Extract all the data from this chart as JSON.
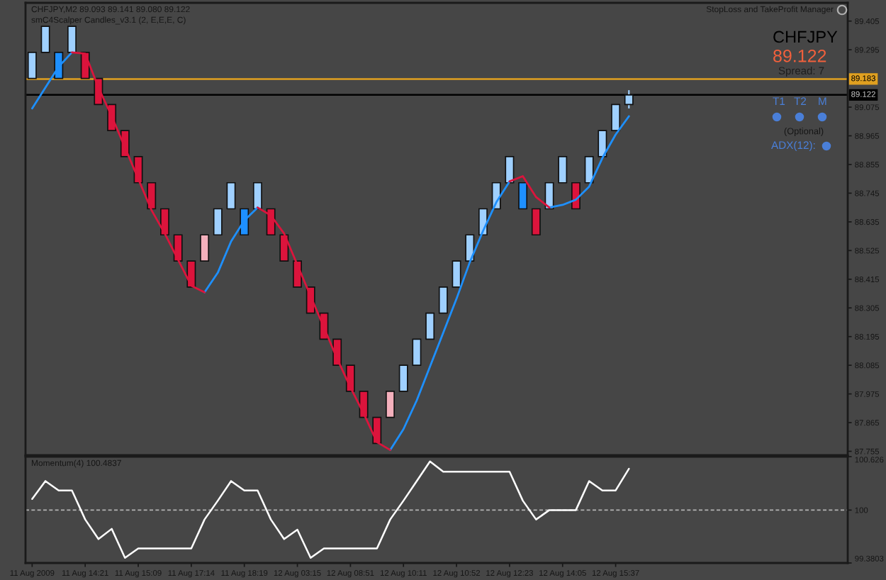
{
  "chart_data": [
    {
      "type": "candlestick",
      "title": "CHFJPY,M2 89.093 89.141 89.080 89.122",
      "subtitle": "smC4Scalper Candles_v3.1 (2, E,E,E, C)",
      "categories": [
        null,
        null,
        null,
        null,
        null,
        null,
        null,
        null,
        null,
        null,
        null,
        null,
        null,
        null,
        null,
        null,
        null,
        null,
        null,
        null,
        null,
        null,
        null,
        null,
        null,
        null,
        null,
        null,
        null,
        null,
        null,
        null,
        null,
        null,
        null,
        null,
        null,
        null,
        null,
        null,
        null,
        null,
        null,
        null,
        null,
        null,
        null,
        null,
        null,
        null,
        null,
        null,
        null,
        null,
        null,
        null,
        null,
        null,
        null,
        null,
        null,
        null
      ],
      "ohlc": [
        [
          89.185,
          89.285,
          89.185,
          89.285
        ],
        [
          89.285,
          89.385,
          89.285,
          89.385
        ],
        [
          89.285,
          89.285,
          89.185,
          89.185
        ],
        [
          89.285,
          89.385,
          89.285,
          89.385
        ],
        [
          89.285,
          89.285,
          89.185,
          89.185
        ],
        [
          89.185,
          89.185,
          89.085,
          89.085
        ],
        [
          89.085,
          89.085,
          88.985,
          88.985
        ],
        [
          88.985,
          88.985,
          88.885,
          88.885
        ],
        [
          88.885,
          88.885,
          88.785,
          88.785
        ],
        [
          88.785,
          88.785,
          88.685,
          88.685
        ],
        [
          88.685,
          88.685,
          88.585,
          88.585
        ],
        [
          88.585,
          88.585,
          88.485,
          88.485
        ],
        [
          88.485,
          88.485,
          88.385,
          88.385
        ],
        [
          88.485,
          88.585,
          88.485,
          88.585
        ],
        [
          88.585,
          88.685,
          88.585,
          88.685
        ],
        [
          88.685,
          88.785,
          88.685,
          88.785
        ],
        [
          88.685,
          88.685,
          88.585,
          88.585
        ],
        [
          88.685,
          88.785,
          88.685,
          88.785
        ],
        [
          88.685,
          88.685,
          88.585,
          88.585
        ],
        [
          88.585,
          88.585,
          88.485,
          88.485
        ],
        [
          88.485,
          88.485,
          88.385,
          88.385
        ],
        [
          88.385,
          88.385,
          88.285,
          88.285
        ],
        [
          88.285,
          88.285,
          88.185,
          88.185
        ],
        [
          88.185,
          88.185,
          88.085,
          88.085
        ],
        [
          88.085,
          88.085,
          87.985,
          87.985
        ],
        [
          87.985,
          87.985,
          87.885,
          87.885
        ],
        [
          87.885,
          87.885,
          87.785,
          87.785
        ],
        [
          87.885,
          87.985,
          87.885,
          87.985
        ],
        [
          87.985,
          88.085,
          87.985,
          88.085
        ],
        [
          88.085,
          88.185,
          88.085,
          88.185
        ],
        [
          88.185,
          88.285,
          88.185,
          88.285
        ],
        [
          88.285,
          88.385,
          88.285,
          88.385
        ],
        [
          88.385,
          88.485,
          88.385,
          88.485
        ],
        [
          88.485,
          88.585,
          88.485,
          88.585
        ],
        [
          88.585,
          88.685,
          88.585,
          88.685
        ],
        [
          88.685,
          88.785,
          88.685,
          88.785
        ],
        [
          88.785,
          88.885,
          88.785,
          88.885
        ],
        [
          88.785,
          88.785,
          88.685,
          88.685
        ],
        [
          88.685,
          88.685,
          88.585,
          88.585
        ],
        [
          88.685,
          88.785,
          88.685,
          88.785
        ],
        [
          88.785,
          88.885,
          88.785,
          88.885
        ],
        [
          88.785,
          88.785,
          88.685,
          88.685
        ],
        [
          88.785,
          88.885,
          88.785,
          88.885
        ],
        [
          88.885,
          88.985,
          88.885,
          88.985
        ],
        [
          88.985,
          89.085,
          88.985,
          89.085
        ],
        [
          89.085,
          89.14,
          89.07,
          89.122
        ],
        null,
        null,
        null,
        null,
        null,
        null,
        null,
        null,
        null,
        null,
        null,
        null,
        null,
        null,
        null,
        null
      ],
      "colors": [
        "#9fd0ff",
        "#9fd0ff",
        "#1e90ff",
        "#9fd0ff",
        "#dc143c",
        "#dc143c",
        "#dc143c",
        "#dc143c",
        "#dc143c",
        "#dc143c",
        "#dc143c",
        "#dc143c",
        "#dc143c",
        "#f4b0bc",
        "#9fd0ff",
        "#9fd0ff",
        "#1e90ff",
        "#9fd0ff",
        "#dc143c",
        "#dc143c",
        "#dc143c",
        "#dc143c",
        "#dc143c",
        "#dc143c",
        "#dc143c",
        "#dc143c",
        "#dc143c",
        "#f4b0bc",
        "#9fd0ff",
        "#9fd0ff",
        "#9fd0ff",
        "#9fd0ff",
        "#9fd0ff",
        "#9fd0ff",
        "#9fd0ff",
        "#9fd0ff",
        "#9fd0ff",
        "#1e90ff",
        "#dc143c",
        "#9fd0ff",
        "#9fd0ff",
        "#dc143c",
        "#9fd0ff",
        "#9fd0ff",
        "#9fd0ff",
        "#9fd0ff",
        null,
        null,
        null,
        null,
        null,
        null,
        null,
        null,
        null,
        null,
        null,
        null,
        null,
        null,
        null,
        null
      ],
      "series": [
        {
          "type": "line",
          "color": "#1e90ff",
          "values": [
            89.07,
            89.15,
            89.23,
            89.285,
            null,
            null,
            null,
            null,
            null,
            null,
            null,
            null,
            null,
            88.365,
            88.44,
            88.56,
            88.64,
            88.69,
            null,
            null,
            null,
            null,
            null,
            null,
            null,
            null,
            null,
            87.76,
            87.84,
            87.95,
            88.08,
            88.21,
            88.34,
            88.48,
            88.6,
            88.71,
            88.79,
            null,
            null,
            88.69,
            88.7,
            88.72,
            88.77,
            88.88,
            88.97,
            89.04,
            null,
            null,
            null,
            null,
            null,
            null,
            null,
            null,
            null,
            null,
            null,
            null,
            null,
            null,
            null,
            null
          ]
        },
        {
          "type": "line",
          "color": "#dc143c",
          "values": [
            null,
            null,
            null,
            89.285,
            89.28,
            89.15,
            89.04,
            88.92,
            88.8,
            88.68,
            88.59,
            88.49,
            88.39,
            88.365,
            null,
            null,
            null,
            88.69,
            88.66,
            88.59,
            88.47,
            88.35,
            88.23,
            88.11,
            88.0,
            87.9,
            87.79,
            87.76,
            null,
            null,
            null,
            null,
            null,
            null,
            null,
            null,
            88.79,
            88.81,
            88.73,
            88.69,
            null,
            null,
            null,
            null,
            null,
            null,
            null,
            null,
            null,
            null,
            null,
            null,
            null,
            null,
            null,
            null,
            null,
            null,
            null,
            null,
            null,
            null
          ]
        }
      ],
      "ylim": [
        87.74,
        89.475
      ],
      "yticks": [
        89.405,
        89.295,
        89.075,
        88.965,
        88.855,
        88.745,
        88.635,
        88.525,
        88.415,
        88.305,
        88.195,
        88.085,
        87.975,
        87.865,
        87.755
      ],
      "ref_lines": [
        {
          "axis": "y",
          "value": 89.183,
          "label": "89.183",
          "color": "#e0a020"
        },
        {
          "axis": "y",
          "value": 89.122,
          "label": "89.122",
          "color": "#000000"
        }
      ],
      "annotations": [
        "StopLoss and TakeProfit Manager",
        "CHFJPY",
        "89.122",
        "Spread: 7",
        "T1",
        "T2",
        "M",
        "(Optional)",
        "ADX(12):"
      ],
      "tick_labels": "y"
    },
    {
      "type": "line",
      "title": "Momentum(4) 100.4837",
      "categories": [
        "11 Aug 2009",
        null,
        null,
        null,
        "11 Aug 14:21",
        null,
        null,
        null,
        "11 Aug 15:09",
        null,
        null,
        null,
        "11 Aug 17:14",
        null,
        null,
        null,
        "11 Aug 18:19",
        null,
        null,
        null,
        "12 Aug 03:15",
        null,
        null,
        null,
        "12 Aug 08:51",
        null,
        null,
        null,
        "12 Aug 10:11",
        null,
        null,
        null,
        "12 Aug 10:52",
        null,
        null,
        null,
        "12 Aug 12:23",
        null,
        null,
        null,
        "12 Aug 14:05",
        null,
        null,
        null,
        "12 Aug 15:37",
        null,
        null,
        null,
        null,
        null,
        null,
        null,
        null,
        null,
        null,
        null,
        null,
        null,
        null,
        null,
        null,
        null
      ],
      "series": [
        {
          "color": "#ffffff",
          "values": [
            100.13,
            100.34,
            100.23,
            100.23,
            99.89,
            99.66,
            99.78,
            99.44,
            99.55,
            99.55,
            99.55,
            99.55,
            99.55,
            99.89,
            100.11,
            100.34,
            100.23,
            100.23,
            99.89,
            99.66,
            99.77,
            99.44,
            99.55,
            99.55,
            99.55,
            99.55,
            99.55,
            99.89,
            100.11,
            100.34,
            100.57,
            100.45,
            100.45,
            100.45,
            100.45,
            100.45,
            100.45,
            100.11,
            99.89,
            100,
            100,
            100,
            100.34,
            100.23,
            100.23,
            100.4837,
            null,
            null,
            null,
            null,
            null,
            null,
            null,
            null,
            null,
            null,
            null,
            null,
            null,
            null,
            null,
            null
          ]
        }
      ],
      "ylim": [
        99.3803,
        100.626
      ],
      "yticks": [
        100.626,
        100,
        99.3803
      ],
      "ref_lines": [
        {
          "axis": "y",
          "value": 100,
          "color": "#b4b4b4",
          "line_style": "dashed"
        }
      ]
    }
  ]
}
